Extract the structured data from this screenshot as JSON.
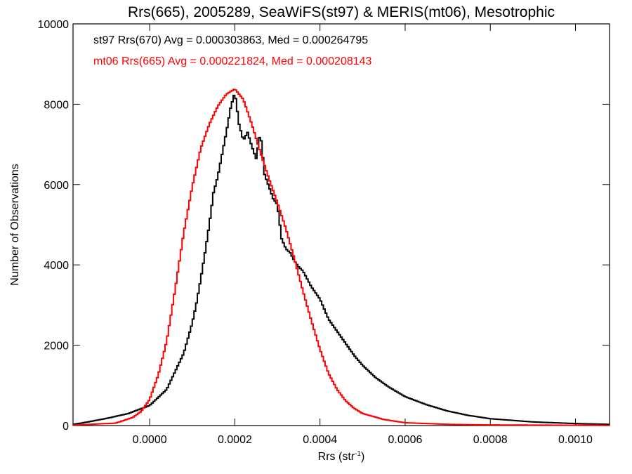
{
  "chart_data": {
    "type": "line",
    "title": "Rrs(665), 2005289, SeaWiFS(st97) & MERIS(mt06), Mesotrophic",
    "xlabel": "Rrs (str",
    "xlabel_sup": "-1",
    "xlabel_close": ")",
    "ylabel": "Number of Observations",
    "xlim": [
      -0.00018,
      0.00108
    ],
    "ylim": [
      0,
      10000
    ],
    "x_ticks": [
      0.0,
      0.0002,
      0.0004,
      0.0006,
      0.0008,
      0.001
    ],
    "x_tick_labels": [
      "0.0000",
      "0.0002",
      "0.0004",
      "0.0006",
      "0.0008",
      "0.0010"
    ],
    "y_ticks": [
      0,
      2000,
      4000,
      6000,
      8000,
      10000
    ],
    "y_tick_labels": [
      "0",
      "2000",
      "4000",
      "6000",
      "8000",
      "10000"
    ],
    "grid": false,
    "legend_position": "top-left",
    "series": [
      {
        "name": "st97 Rrs(670) Avg = 0.000303863, Med = 0.000264795",
        "color": "#000000",
        "style": "histogram-step",
        "points": [
          [
            -0.00018,
            30
          ],
          [
            -0.00015,
            80
          ],
          [
            -0.0001,
            180
          ],
          [
            -5e-05,
            300
          ],
          [
            0.0,
            500
          ],
          [
            2e-05,
            700
          ],
          [
            4e-05,
            900
          ],
          [
            6e-05,
            1350
          ],
          [
            8e-05,
            1800
          ],
          [
            0.0001,
            2550
          ],
          [
            0.00011,
            3050
          ],
          [
            0.00012,
            3650
          ],
          [
            0.00013,
            4300
          ],
          [
            0.00014,
            5000
          ],
          [
            0.00015,
            5800
          ],
          [
            0.00016,
            6200
          ],
          [
            0.00017,
            6750
          ],
          [
            0.00018,
            7300
          ],
          [
            0.00019,
            7900
          ],
          [
            0.0002,
            8300
          ],
          [
            0.00021,
            7500
          ],
          [
            0.00022,
            7100
          ],
          [
            0.00023,
            7300
          ],
          [
            0.00024,
            6950
          ],
          [
            0.00025,
            6650
          ],
          [
            0.00026,
            7300
          ],
          [
            0.00027,
            6250
          ],
          [
            0.00028,
            5950
          ],
          [
            0.00029,
            5650
          ],
          [
            0.0003,
            5500
          ],
          [
            0.00031,
            4650
          ],
          [
            0.00032,
            4400
          ],
          [
            0.00033,
            4300
          ],
          [
            0.00034,
            4100
          ],
          [
            0.00035,
            3950
          ],
          [
            0.00036,
            3850
          ],
          [
            0.00038,
            3450
          ],
          [
            0.0004,
            3150
          ],
          [
            0.00042,
            2650
          ],
          [
            0.00044,
            2350
          ],
          [
            0.00046,
            2050
          ],
          [
            0.00048,
            1750
          ],
          [
            0.0005,
            1500
          ],
          [
            0.00053,
            1200
          ],
          [
            0.00056,
            970
          ],
          [
            0.0006,
            720
          ],
          [
            0.00065,
            520
          ],
          [
            0.0007,
            360
          ],
          [
            0.00075,
            250
          ],
          [
            0.0008,
            170
          ],
          [
            0.0009,
            90
          ],
          [
            0.001,
            50
          ],
          [
            0.00108,
            30
          ]
        ]
      },
      {
        "name": "mt06 Rrs(665) Avg = 0.000221824, Med = 0.000208143",
        "color": "#ff0000",
        "style": "histogram-step",
        "points": [
          [
            -0.00018,
            10
          ],
          [
            -8e-05,
            60
          ],
          [
            -4e-05,
            200
          ],
          [
            -2e-05,
            350
          ],
          [
            0.0,
            650
          ],
          [
            2e-05,
            1250
          ],
          [
            4e-05,
            2100
          ],
          [
            6e-05,
            3400
          ],
          [
            8e-05,
            4800
          ],
          [
            0.0001,
            5950
          ],
          [
            0.00012,
            6900
          ],
          [
            0.00014,
            7500
          ],
          [
            0.00016,
            7950
          ],
          [
            0.00018,
            8250
          ],
          [
            0.0002,
            8380
          ],
          [
            0.00022,
            8120
          ],
          [
            0.00024,
            7500
          ],
          [
            0.00026,
            6800
          ],
          [
            0.00028,
            6150
          ],
          [
            0.0003,
            5550
          ],
          [
            0.00032,
            4900
          ],
          [
            0.00034,
            4150
          ],
          [
            0.00036,
            3350
          ],
          [
            0.00038,
            2600
          ],
          [
            0.0004,
            1900
          ],
          [
            0.00042,
            1300
          ],
          [
            0.00044,
            900
          ],
          [
            0.00046,
            620
          ],
          [
            0.00048,
            430
          ],
          [
            0.0005,
            300
          ],
          [
            0.00055,
            150
          ],
          [
            0.0006,
            70
          ],
          [
            0.0007,
            30
          ],
          [
            0.0008,
            15
          ],
          [
            0.00108,
            5
          ]
        ]
      }
    ]
  }
}
